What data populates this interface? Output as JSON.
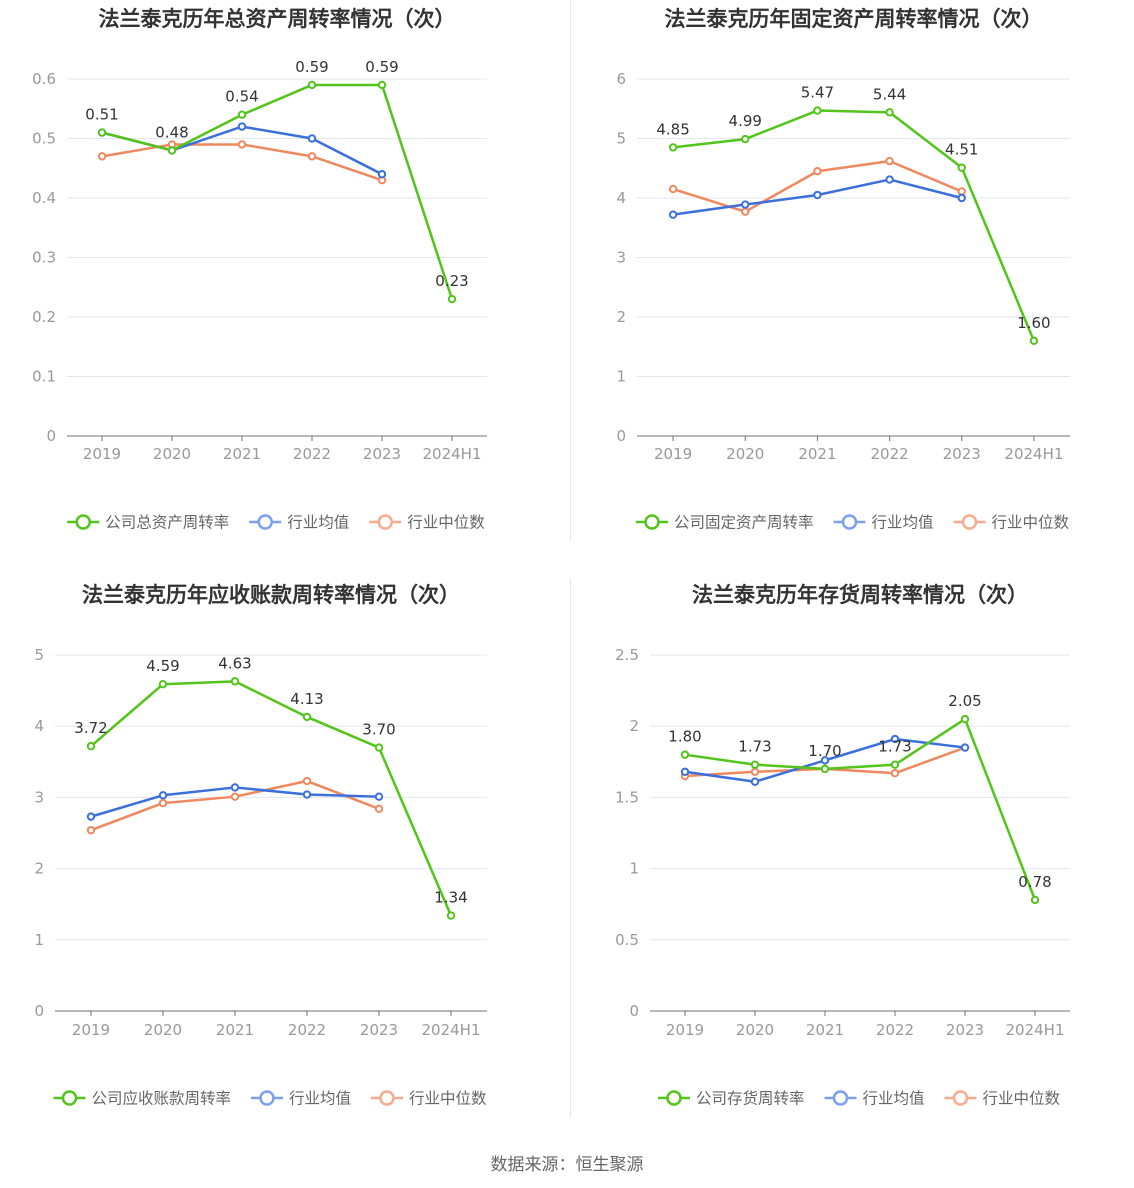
{
  "colors": {
    "company": "#52c41a",
    "industry_avg": "#3b6fdc",
    "industry_median": "#f0885f"
  },
  "legend": {
    "industry_avg": "行业均值",
    "industry_median": "行业中位数"
  },
  "source": "数据来源：恒生聚源",
  "chart_data": [
    {
      "type": "line",
      "title": "法兰泰克历年总资产周转率情况（次）",
      "categories": [
        "2019",
        "2020",
        "2021",
        "2022",
        "2023",
        "2024H1"
      ],
      "ylim": [
        0,
        0.6
      ],
      "yticks": [
        "0",
        "0.1",
        "0.2",
        "0.3",
        "0.4",
        "0.5",
        "0.6"
      ],
      "legend_company": "公司总资产周转率",
      "series": [
        {
          "name": "公司总资产周转率",
          "values": [
            0.51,
            0.48,
            0.54,
            0.59,
            0.59,
            0.23
          ],
          "labels": [
            "0.51",
            "0.48",
            "0.54",
            "0.59",
            "0.59",
            "0.23"
          ]
        },
        {
          "name": "行业均值",
          "values": [
            0.51,
            0.48,
            0.52,
            0.5,
            0.44,
            null
          ]
        },
        {
          "name": "行业中位数",
          "values": [
            0.47,
            0.49,
            0.49,
            0.47,
            0.43,
            null
          ]
        }
      ]
    },
    {
      "type": "line",
      "title": "法兰泰克历年固定资产周转率情况（次）",
      "categories": [
        "2019",
        "2020",
        "2021",
        "2022",
        "2023",
        "2024H1"
      ],
      "ylim": [
        0,
        6
      ],
      "yticks": [
        "0",
        "1",
        "2",
        "3",
        "4",
        "5",
        "6"
      ],
      "legend_company": "公司固定资产周转率",
      "series": [
        {
          "name": "公司固定资产周转率",
          "values": [
            4.85,
            4.99,
            5.47,
            5.44,
            4.51,
            1.6
          ],
          "labels": [
            "4.85",
            "4.99",
            "5.47",
            "5.44",
            "4.51",
            "1.60"
          ]
        },
        {
          "name": "行业均值",
          "values": [
            3.72,
            3.89,
            4.05,
            4.31,
            4.0,
            null
          ]
        },
        {
          "name": "行业中位数",
          "values": [
            4.15,
            3.77,
            4.45,
            4.62,
            4.11,
            null
          ]
        }
      ]
    },
    {
      "type": "line",
      "title": "法兰泰克历年应收账款周转率情况（次）",
      "categories": [
        "2019",
        "2020",
        "2021",
        "2022",
        "2023",
        "2024H1"
      ],
      "ylim": [
        0,
        5
      ],
      "yticks": [
        "0",
        "1",
        "2",
        "3",
        "4",
        "5"
      ],
      "legend_company": "公司应收账款周转率",
      "series": [
        {
          "name": "公司应收账款周转率",
          "values": [
            3.72,
            4.59,
            4.63,
            4.13,
            3.7,
            1.34
          ],
          "labels": [
            "3.72",
            "4.59",
            "4.63",
            "4.13",
            "3.70",
            "1.34"
          ]
        },
        {
          "name": "行业均值",
          "values": [
            2.73,
            3.03,
            3.14,
            3.04,
            3.01,
            null
          ]
        },
        {
          "name": "行业中位数",
          "values": [
            2.54,
            2.92,
            3.01,
            3.23,
            2.84,
            null
          ]
        }
      ]
    },
    {
      "type": "line",
      "title": "法兰泰克历年存货周转率情况（次）",
      "categories": [
        "2019",
        "2020",
        "2021",
        "2022",
        "2023",
        "2024H1"
      ],
      "ylim": [
        0,
        2.5
      ],
      "yticks": [
        "0",
        "0.5",
        "1",
        "1.5",
        "2",
        "2.5"
      ],
      "legend_company": "公司存货周转率",
      "series": [
        {
          "name": "公司存货周转率",
          "values": [
            1.8,
            1.73,
            1.7,
            1.73,
            2.05,
            0.78
          ],
          "labels": [
            "1.80",
            "1.73",
            "1.70",
            "1.73",
            "2.05",
            "0.78"
          ]
        },
        {
          "name": "行业均值",
          "values": [
            1.68,
            1.61,
            1.76,
            1.91,
            1.85,
            null
          ]
        },
        {
          "name": "行业中位数",
          "values": [
            1.65,
            1.68,
            1.7,
            1.67,
            1.85,
            null
          ]
        }
      ]
    }
  ]
}
